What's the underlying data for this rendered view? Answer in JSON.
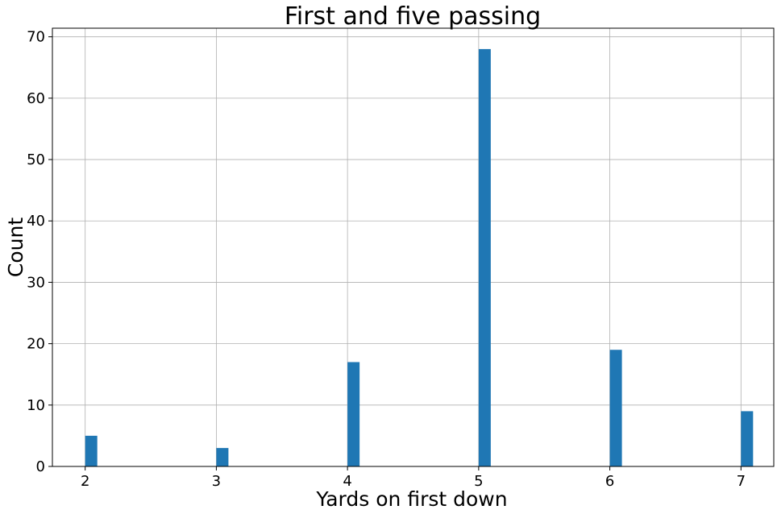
{
  "chart_data": {
    "type": "bar",
    "title": "First and five passing",
    "xlabel": "Yards on first down",
    "ylabel": "Count",
    "x": [
      2,
      3,
      4,
      5,
      6,
      7
    ],
    "values": [
      5,
      3,
      17,
      68,
      19,
      9
    ],
    "xlim": [
      1.75,
      7.25
    ],
    "ylim": [
      0,
      71.4
    ],
    "xticks": [
      "2",
      "3",
      "4",
      "5",
      "6",
      "7"
    ],
    "yticks": [
      "0",
      "10",
      "20",
      "30",
      "40",
      "50",
      "60",
      "70"
    ],
    "grid": true,
    "bar_color": "#1f77b4",
    "grid_color": "#b0b0b0"
  }
}
